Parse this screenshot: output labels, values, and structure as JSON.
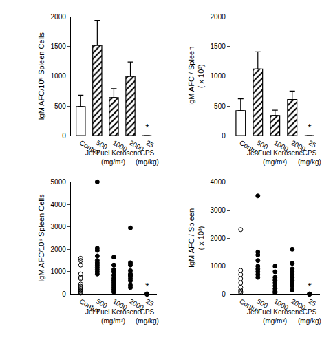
{
  "chart_data": [
    {
      "type": "bar",
      "y_label": "IgM AFC/10⁶ Spleen Cells",
      "categories": [
        "Control",
        "500",
        "1000",
        "2000",
        "25"
      ],
      "series": [
        {
          "marker": "plain",
          "color": "#ffffff",
          "values": [
            490,
            null,
            null,
            null,
            null
          ],
          "errors": [
            190,
            null,
            null,
            null,
            null
          ]
        },
        {
          "marker": "hatched",
          "color": "#000000",
          "values": [
            null,
            1520,
            640,
            1000,
            0
          ],
          "errors": [
            null,
            420,
            150,
            240,
            0
          ]
        }
      ],
      "group_labels": [
        {
          "text": "Jet Fuel Kerosene\n(mg/m³)",
          "categories": [
            "500",
            "1000",
            "2000"
          ]
        },
        {
          "text": "CPS\n(mg/kg)",
          "categories": [
            "25"
          ]
        }
      ],
      "annotations": [
        {
          "text": "*",
          "category": "25"
        }
      ],
      "ylim": [
        0,
        2000
      ],
      "yticks": [
        0,
        500,
        1000,
        1500,
        2000
      ],
      "grid": false
    },
    {
      "type": "bar",
      "y_label": "IgM AFC / Spleen\n( x 10³)",
      "categories": [
        "Control",
        "500",
        "1000",
        "2000",
        "25"
      ],
      "series": [
        {
          "marker": "plain",
          "color": "#ffffff",
          "values": [
            420,
            null,
            null,
            null,
            null
          ],
          "errors": [
            200,
            null,
            null,
            null,
            null
          ]
        },
        {
          "marker": "hatched",
          "color": "#000000",
          "values": [
            null,
            1120,
            340,
            610,
            0
          ],
          "errors": [
            null,
            290,
            90,
            140,
            0
          ]
        }
      ],
      "group_labels": [
        {
          "text": "Jet Fuel Kerosene\n(mg/m³)",
          "categories": [
            "500",
            "1000",
            "2000"
          ]
        },
        {
          "text": "CPS\n(mg/kg)",
          "categories": [
            "25"
          ]
        }
      ],
      "annotations": [
        {
          "text": "*",
          "category": "25"
        }
      ],
      "ylim": [
        0,
        2000
      ],
      "yticks": [
        0,
        500,
        1000,
        1500,
        2000
      ],
      "grid": false
    },
    {
      "type": "scatter",
      "y_label": "IgM AFC/10⁶ Spleen Cells",
      "categories": [
        "Control",
        "500",
        "1000",
        "2000",
        "25"
      ],
      "series": [
        {
          "marker": "open",
          "color": "#000000",
          "values": [
            [
              1600,
              1500,
              1300,
              900,
              750,
              700,
              450,
              350,
              300,
              250,
              200,
              150,
              100,
              50
            ],
            [],
            [],
            [],
            []
          ]
        },
        {
          "marker": "filled",
          "color": "#000000",
          "values": [
            [],
            [
              5000,
              2050,
              1950,
              1700,
              1500,
              1400,
              1300,
              1200,
              1100,
              1000,
              900
            ],
            [
              1650,
              1300,
              1100,
              1000,
              850,
              700,
              600,
              500,
              400,
              300,
              200,
              100
            ],
            [
              2950,
              1400,
              1300,
              1050,
              900,
              850,
              800,
              700,
              600,
              400,
              300
            ],
            [
              0,
              10,
              20
            ]
          ]
        }
      ],
      "group_labels": [
        {
          "text": "Jet Fuel Kerosene\n(mg/m³)",
          "categories": [
            "500",
            "1000",
            "2000"
          ]
        },
        {
          "text": "CPS\n(mg/kg)",
          "categories": [
            "25"
          ]
        }
      ],
      "annotations": [
        {
          "text": "*",
          "category": "25"
        }
      ],
      "ylim": [
        0,
        5000
      ],
      "yticks": [
        0,
        1000,
        2000,
        3000,
        4000,
        5000
      ],
      "grid": false
    },
    {
      "type": "scatter",
      "y_label": "IgM AFC / Spleen\n( x 10³)",
      "categories": [
        "Control",
        "500",
        "1000",
        "2000",
        "25"
      ],
      "series": [
        {
          "marker": "open",
          "color": "#000000",
          "values": [
            [
              2300,
              850,
              700,
              550,
              400,
              250,
              150,
              100,
              50
            ],
            [],
            [],
            [],
            []
          ]
        },
        {
          "marker": "filled",
          "color": "#000000",
          "values": [
            [],
            [
              3500,
              1500,
              1400,
              1200,
              1000,
              900,
              800,
              700,
              600
            ],
            [
              1000,
              800,
              600,
              500,
              400,
              300,
              200,
              100,
              50
            ],
            [
              1600,
              1100,
              900,
              800,
              700,
              600,
              500,
              400,
              300,
              150
            ],
            [
              0,
              5,
              10
            ]
          ]
        }
      ],
      "group_labels": [
        {
          "text": "Jet Fuel Kerosene\n(mg/m³)",
          "categories": [
            "500",
            "1000",
            "2000"
          ]
        },
        {
          "text": "CPS\n(mg/kg)",
          "categories": [
            "25"
          ]
        }
      ],
      "annotations": [
        {
          "text": "*",
          "category": "25"
        }
      ],
      "ylim": [
        0,
        4000
      ],
      "yticks": [
        0,
        1000,
        2000,
        3000,
        4000
      ],
      "grid": false
    }
  ]
}
